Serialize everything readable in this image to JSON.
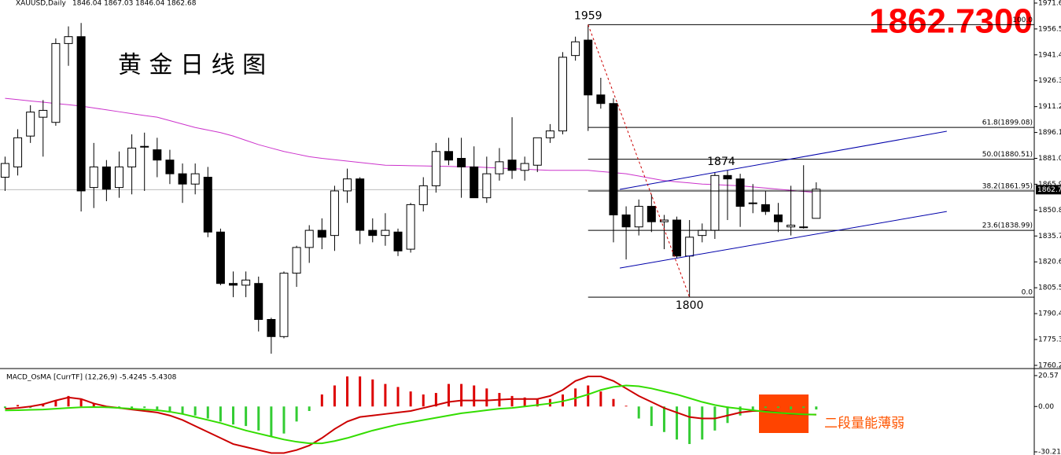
{
  "chart_data": [
    {
      "type": "candlestick",
      "title": "黄 金 日 线 图",
      "header": "XAUUSD,Daily",
      "header_values": "1846.04 1867.03 1846.04 1862.68",
      "price_label": "1862.7300",
      "xlim": [
        -0.4,
        81.2
      ],
      "ylim": [
        1758.8,
        1973.4
      ],
      "yticks": [
        {
          "value": 1971.6,
          "label": "1971.60"
        },
        {
          "value": 1956.5,
          "label": "1956.50"
        },
        {
          "value": 1941.4,
          "label": "1941.40"
        },
        {
          "value": 1926.3,
          "label": "1926.30"
        },
        {
          "value": 1911.2,
          "label": "1911.20"
        },
        {
          "value": 1896.1,
          "label": "1896.10"
        },
        {
          "value": 1881,
          "label": "1881.00"
        },
        {
          "value": 1865.9,
          "label": "1865.90"
        },
        {
          "value": 1850.8,
          "label": "1850.80"
        },
        {
          "value": 1835.7,
          "label": "1835.70"
        },
        {
          "value": 1820.6,
          "label": "1820.60"
        },
        {
          "value": 1805.5,
          "label": "1805.50"
        },
        {
          "value": 1790.4,
          "label": "1790.40"
        },
        {
          "value": 1775.3,
          "label": "1775.30"
        },
        {
          "value": 1760.2,
          "label": "1760.20"
        }
      ],
      "open": [
        1870,
        1876,
        1894,
        1905,
        1902,
        1948,
        1952,
        1864,
        1876,
        1864,
        1876,
        1888,
        1886,
        1880,
        1872,
        1866,
        1870,
        1838,
        1808,
        1807,
        1808,
        1787,
        1777,
        1814,
        1829,
        1839,
        1836,
        1862,
        1869,
        1839,
        1836,
        1838,
        1828,
        1854,
        1865,
        1885,
        1881,
        1876,
        1858,
        1872,
        1880,
        1874,
        1877,
        1893,
        1897,
        1941,
        1950,
        1918,
        1913,
        1848,
        1841,
        1853,
        1844,
        1845,
        1824,
        1836,
        1839,
        1871,
        1869,
        1855,
        1854,
        1848,
        1841,
        1841,
        1846
      ],
      "high": [
        1882,
        1898,
        1912,
        1915,
        1951,
        1958,
        1960,
        1890,
        1880,
        1885,
        1895,
        1896,
        1893,
        1886,
        1878,
        1878,
        1876,
        1840,
        1815,
        1815,
        1812,
        1788,
        1815,
        1830,
        1842,
        1846,
        1865,
        1875,
        1870,
        1846,
        1849,
        1840,
        1855,
        1870,
        1890,
        1893,
        1893,
        1888,
        1882,
        1887,
        1905,
        1882,
        1893,
        1901,
        1943,
        1952,
        1959,
        1928,
        1916,
        1853,
        1857,
        1860,
        1848,
        1847,
        1845,
        1843,
        1873,
        1874,
        1872,
        1866,
        1862,
        1855,
        1865,
        1877,
        1867
      ],
      "low": [
        1862,
        1871,
        1890,
        1882,
        1900,
        1935,
        1850,
        1852,
        1856,
        1858,
        1860,
        1862,
        1870,
        1866,
        1855,
        1860,
        1835,
        1807,
        1800,
        1800,
        1780,
        1767,
        1776,
        1806,
        1820,
        1828,
        1827,
        1855,
        1831,
        1832,
        1830,
        1824,
        1826,
        1850,
        1861,
        1877,
        1858,
        1858,
        1855,
        1868,
        1869,
        1868,
        1873,
        1890,
        1895,
        1938,
        1897,
        1910,
        1832,
        1822,
        1836,
        1838,
        1828,
        1823,
        1800,
        1832,
        1834,
        1845,
        1841,
        1849,
        1848,
        1838,
        1836,
        1840,
        1846
      ],
      "close": [
        1878,
        1893,
        1908,
        1909,
        1948,
        1952,
        1862,
        1876,
        1863,
        1876,
        1887,
        1888,
        1880,
        1872,
        1866,
        1872,
        1838,
        1808,
        1807,
        1810,
        1787,
        1777,
        1814,
        1829,
        1839,
        1835,
        1862,
        1869,
        1839,
        1836,
        1839,
        1827,
        1854,
        1865,
        1885,
        1880,
        1876,
        1858,
        1872,
        1879,
        1874,
        1878,
        1893,
        1897,
        1940,
        1949,
        1918,
        1913,
        1848,
        1841,
        1853,
        1844,
        1845,
        1824,
        1835,
        1839,
        1871,
        1869,
        1853,
        1855,
        1850,
        1844,
        1842,
        1841,
        1863
      ],
      "bull_color": "#ffffff",
      "bear_color": "#000000",
      "ma": {
        "color": "#cc33cc",
        "values": [
          1916,
          1915.3,
          1914.5,
          1913.8,
          1913,
          1912.3,
          1911.5,
          1910.4,
          1909.3,
          1908.2,
          1907.1,
          1906,
          1905,
          1903,
          1901,
          1899,
          1897.5,
          1896,
          1894,
          1891.5,
          1889,
          1887,
          1885,
          1883.5,
          1882,
          1881,
          1880.2,
          1879.4,
          1878.6,
          1877.8,
          1877,
          1876.9,
          1876.7,
          1876.6,
          1876.4,
          1876.3,
          1876.1,
          1876,
          1875.7,
          1875.3,
          1875,
          1874.7,
          1874.3,
          1874,
          1874,
          1874,
          1874,
          1873.3,
          1872.7,
          1872,
          1870.7,
          1869.3,
          1868,
          1867.3,
          1866.7,
          1866,
          1865.7,
          1865.3,
          1865,
          1864.3,
          1863.7,
          1863,
          1862.3,
          1861.7,
          1861
        ]
      },
      "current_price": {
        "value": 1862.73,
        "label": "1862.73"
      },
      "fib": {
        "x_start": 46,
        "levels": [
          {
            "label": "100.0",
            "value": 1959
          },
          {
            "label": "61.8(1899.08)",
            "value": 1899.08
          },
          {
            "label": "50.0(1880.51)",
            "value": 1880.51
          },
          {
            "label": "38.2(1861.95)",
            "value": 1861.95
          },
          {
            "label": "23.6(1838.99)",
            "value": 1838.99
          },
          {
            "label": "0.0",
            "value": 1800
          }
        ]
      },
      "trendlines": [
        {
          "color": "#0000aa",
          "x": [
            48.5,
            74.3
          ],
          "y": [
            1817,
            1850
          ]
        },
        {
          "color": "#0000aa",
          "x": [
            48.5,
            74.3
          ],
          "y": [
            1862.9,
            1896.8
          ]
        },
        {
          "color": "#cc0000",
          "dash": true,
          "x": [
            46,
            54
          ],
          "y": [
            1959,
            1800
          ]
        }
      ],
      "annotations": [
        {
          "text": "1959",
          "x": 46,
          "y": 1959
        },
        {
          "text": "1874",
          "x": 56.5,
          "y": 1874
        },
        {
          "text": "1800",
          "x": 54,
          "y": 1800
        }
      ]
    },
    {
      "type": "macd",
      "header": "MACD_OsMA [CurrTF] (12,26,9) -5.4245 -5.4308",
      "xlim": [
        -0.4,
        81.2
      ],
      "ylim": [
        -32.3,
        24.2
      ],
      "yticks": [
        20.57,
        {
          "value": 0,
          "label": "0.00"
        },
        -30.21
      ],
      "histogram": {
        "pos_color": "#dd0000",
        "neg_color": "#33cc33",
        "values": [
          -1,
          1,
          -1,
          2,
          4,
          7,
          5,
          2,
          -1,
          -1,
          -1.5,
          -1,
          -2,
          -3,
          -5,
          -6,
          -8,
          -10,
          -12,
          -13,
          -16,
          -20,
          -18,
          -10,
          -3,
          8,
          14,
          20,
          20,
          18,
          15,
          13,
          10,
          8,
          9,
          15,
          15,
          14,
          12,
          9,
          7,
          6,
          5,
          5,
          8,
          12,
          14,
          10,
          5,
          0.5,
          -8,
          -13,
          -17,
          -22,
          -25,
          -22,
          -16,
          -11,
          -6,
          -3,
          -1,
          -1,
          -2,
          -1,
          -2
        ]
      },
      "lines": [
        {
          "color": "#cc0000",
          "values": [
            -1.5,
            -1,
            0,
            1.5,
            4,
            6,
            5,
            2,
            0,
            -1,
            -2,
            -3,
            -4,
            -6,
            -9,
            -13,
            -17,
            -21,
            -25,
            -27,
            -29,
            -31,
            -31,
            -29,
            -26,
            -21,
            -15,
            -10,
            -7,
            -6,
            -5,
            -4,
            -3,
            -1,
            1,
            3,
            4,
            4,
            4,
            4.5,
            5,
            5,
            5,
            7,
            11,
            17,
            20,
            20,
            17,
            12,
            7,
            3,
            -1,
            -4,
            -7,
            -8,
            -8,
            -6,
            -4,
            -3,
            -3,
            -4,
            -5,
            -5.3,
            -5.4245
          ]
        },
        {
          "color": "#33dd00",
          "values": [
            -2.6,
            -2.5,
            -2.2,
            -2,
            -1.5,
            -1,
            -0.5,
            -0.4,
            -0.5,
            -1,
            -1.5,
            -2,
            -2.5,
            -3.5,
            -5,
            -7,
            -9,
            -11,
            -13.5,
            -16,
            -18,
            -20,
            -22,
            -23.5,
            -24.5,
            -24.5,
            -23,
            -21,
            -18.5,
            -16,
            -14,
            -12,
            -10.5,
            -9,
            -7.5,
            -6,
            -4.5,
            -3.5,
            -2.5,
            -1.5,
            -1,
            0,
            1,
            2,
            3.5,
            5.5,
            8,
            11,
            13,
            14,
            13.5,
            12,
            10,
            8,
            5.5,
            3,
            1,
            -0.5,
            -1.5,
            -2.5,
            -3.5,
            -4.2,
            -4.8,
            -5.2,
            -5.4308
          ]
        }
      ],
      "annotation": "二段量能薄弱"
    }
  ]
}
